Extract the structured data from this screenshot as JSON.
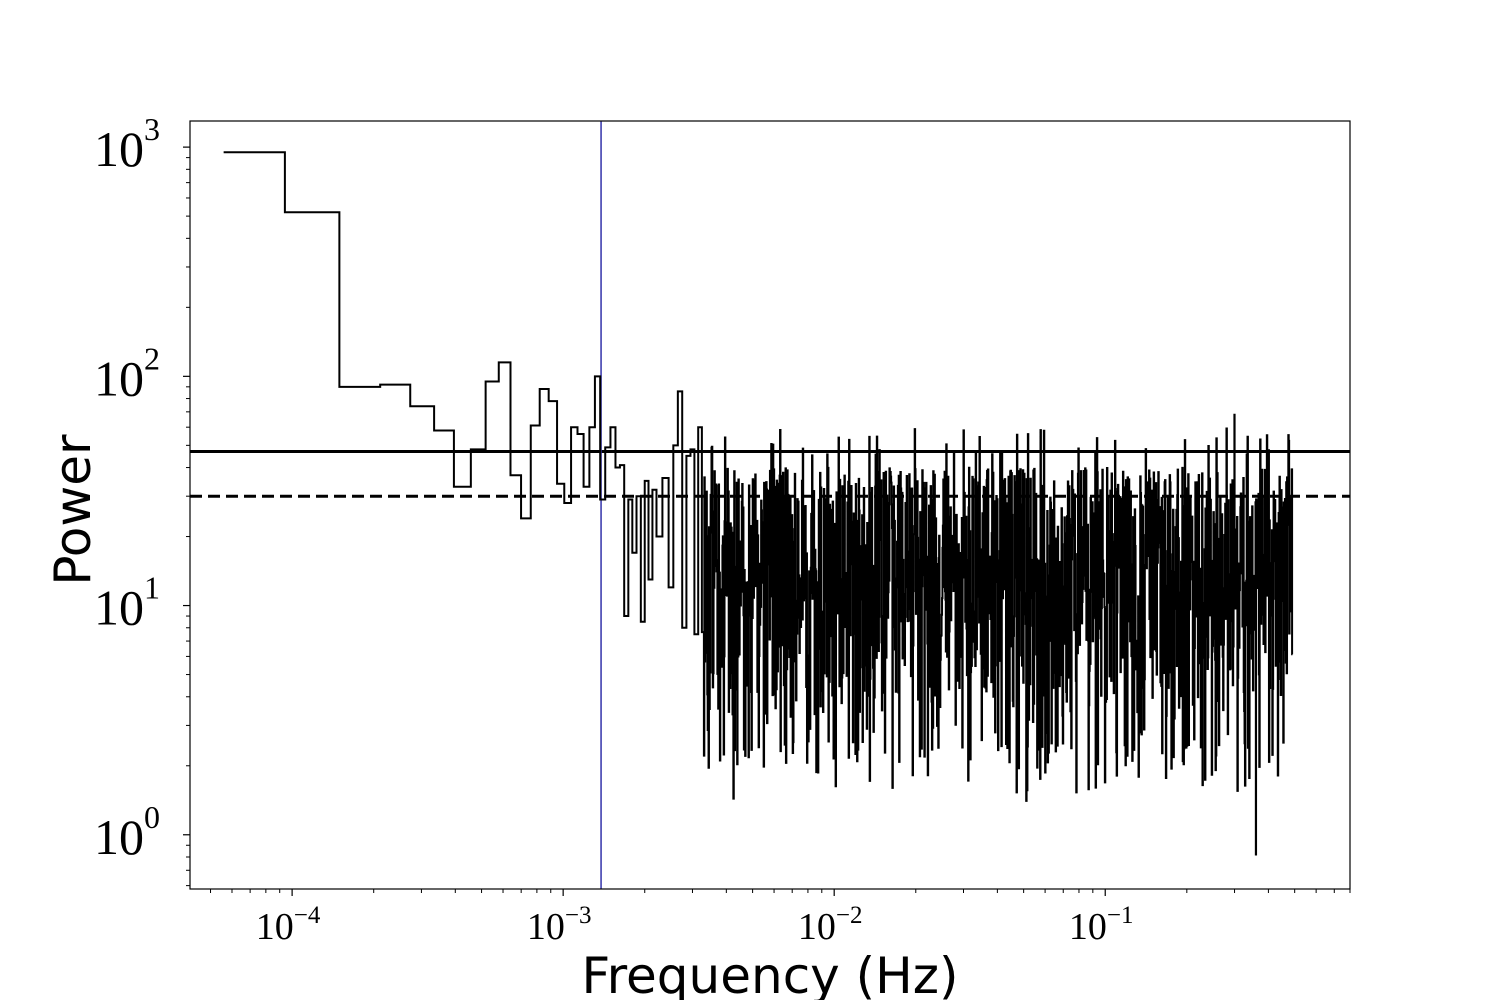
{
  "chart_data": {
    "type": "line",
    "drawstyle": "steps-mid",
    "title": "",
    "xlabel": "Frequency (Hz)",
    "ylabel": "Power",
    "xscale": "log",
    "yscale": "log",
    "xlim": [
      4.2e-05,
      0.8
    ],
    "ylim": [
      0.58,
      1300
    ],
    "grid": false,
    "x_ticks": [
      {
        "base": "10",
        "exp": "−4",
        "value": 0.0001
      },
      {
        "base": "10",
        "exp": "−3",
        "value": 0.001
      },
      {
        "base": "10",
        "exp": "−2",
        "value": 0.01
      },
      {
        "base": "10",
        "exp": "−1",
        "value": 0.1
      }
    ],
    "y_ticks": [
      {
        "base": "10",
        "exp": "0",
        "value": 1
      },
      {
        "base": "10",
        "exp": "1",
        "value": 10
      },
      {
        "base": "10",
        "exp": "2",
        "value": 100
      },
      {
        "base": "10",
        "exp": "3",
        "value": 1000
      }
    ],
    "series": [
      {
        "color": "#000000",
        "low_frequency_points": [
          [
            7.25e-05,
            950
          ],
          [
            0.000122,
            520
          ],
          [
            0.000183,
            90
          ],
          [
            0.000244,
            92
          ],
          [
            0.000305,
            74
          ],
          [
            0.000366,
            58
          ],
          [
            0.000427,
            33
          ],
          [
            0.000488,
            48
          ],
          [
            0.000549,
            95
          ],
          [
            0.00061,
            115
          ],
          [
            0.00067,
            37
          ],
          [
            0.00073,
            24
          ],
          [
            0.00079,
            61
          ],
          [
            0.00085,
            88
          ],
          [
            0.00092,
            78
          ],
          [
            0.00098,
            34
          ],
          [
            0.00104,
            28
          ],
          [
            0.0011,
            60
          ],
          [
            0.00116,
            56
          ],
          [
            0.00122,
            33
          ],
          [
            0.00128,
            60
          ],
          [
            0.00134,
            100
          ],
          [
            0.0014,
            29
          ],
          [
            0.00146,
            49
          ],
          [
            0.00153,
            60
          ],
          [
            0.00159,
            40
          ],
          [
            0.00165,
            41
          ],
          [
            0.00171,
            9
          ],
          [
            0.00177,
            29
          ],
          [
            0.00183,
            17
          ],
          [
            0.0019,
            30
          ],
          [
            0.00197,
            8.5
          ],
          [
            0.00203,
            35
          ],
          [
            0.0021,
            13
          ],
          [
            0.00217,
            32
          ],
          [
            0.00225,
            20
          ],
          [
            0.0024,
            36
          ],
          [
            0.0025,
            12
          ],
          [
            0.0026,
            50
          ],
          [
            0.0027,
            86
          ],
          [
            0.0028,
            8
          ],
          [
            0.0029,
            45
          ],
          [
            0.003,
            48
          ],
          [
            0.0031,
            7.5
          ],
          [
            0.0032,
            60
          ]
        ],
        "high_frequency_band": {
          "x_range": [
            0.0033,
            0.49
          ],
          "typical_power_range": [
            5,
            40
          ],
          "min_power": 0.82,
          "min_power_freq": 0.36,
          "max_power": 68,
          "max_power_freq": 0.3
        }
      }
    ],
    "reference_lines": [
      {
        "orientation": "horizontal",
        "y": 47,
        "style": "solid",
        "color": "#000000"
      },
      {
        "orientation": "horizontal",
        "y": 30,
        "style": "dashed",
        "color": "#000000"
      },
      {
        "orientation": "vertical",
        "x": 0.00138,
        "style": "solid",
        "color": "#3333aa"
      }
    ]
  }
}
